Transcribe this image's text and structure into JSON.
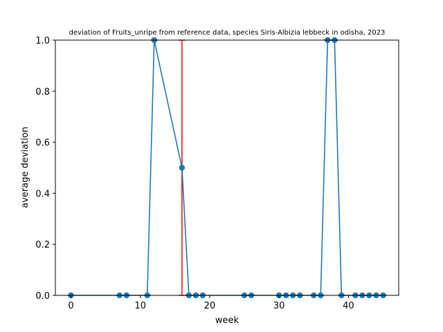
{
  "chart_data": {
    "type": "line",
    "title": "deviation of Fruits_unripe from reference data, species Siris-Albizia lebbeck in odisha, 2023",
    "xlabel": "week",
    "ylabel": "average deviation",
    "xlim": [
      -2.25,
      47.25
    ],
    "ylim": [
      0,
      1.0
    ],
    "xticks": [
      0,
      10,
      20,
      30,
      40
    ],
    "yticks": [
      0.0,
      0.2,
      0.4,
      0.6,
      0.8,
      1.0
    ],
    "xtick_labels": [
      "0",
      "10",
      "20",
      "30",
      "40"
    ],
    "ytick_labels": [
      "0.0",
      "0.2",
      "0.4",
      "0.6",
      "0.8",
      "1.0"
    ],
    "grid": false,
    "legend": "none",
    "series": [
      {
        "color": "#1f77b4",
        "marker": "circle",
        "x": [
          0,
          7,
          8,
          11,
          12,
          16,
          17,
          18,
          19,
          25,
          26,
          30,
          31,
          32,
          33,
          35,
          36,
          37,
          38,
          39,
          41,
          42,
          43,
          44,
          45
        ],
        "y": [
          0,
          0,
          0,
          0,
          1.0,
          0.5,
          0,
          0,
          0,
          0,
          0,
          0,
          0,
          0,
          0,
          0,
          0,
          1.0,
          1.0,
          0,
          0,
          0,
          0,
          0,
          0
        ]
      }
    ],
    "error_bars": {
      "color": "#ff0000",
      "x": [
        0,
        7,
        8,
        11,
        12,
        16,
        17,
        18,
        19,
        25,
        26,
        30,
        31,
        32,
        33,
        35,
        36,
        37,
        38,
        39,
        41,
        42,
        43,
        44,
        45
      ],
      "center": [
        0,
        0,
        0,
        0,
        1.0,
        0.5,
        0,
        0,
        0,
        0,
        0,
        0,
        0,
        0,
        0,
        0,
        0,
        1.0,
        1.0,
        0,
        0,
        0,
        0,
        0,
        0
      ],
      "err": [
        0,
        0,
        0,
        0,
        0,
        0.7071,
        0,
        0,
        0,
        0,
        0,
        0,
        0,
        0,
        0,
        0,
        0,
        0,
        0,
        0,
        0,
        0,
        0,
        0,
        0
      ]
    }
  }
}
